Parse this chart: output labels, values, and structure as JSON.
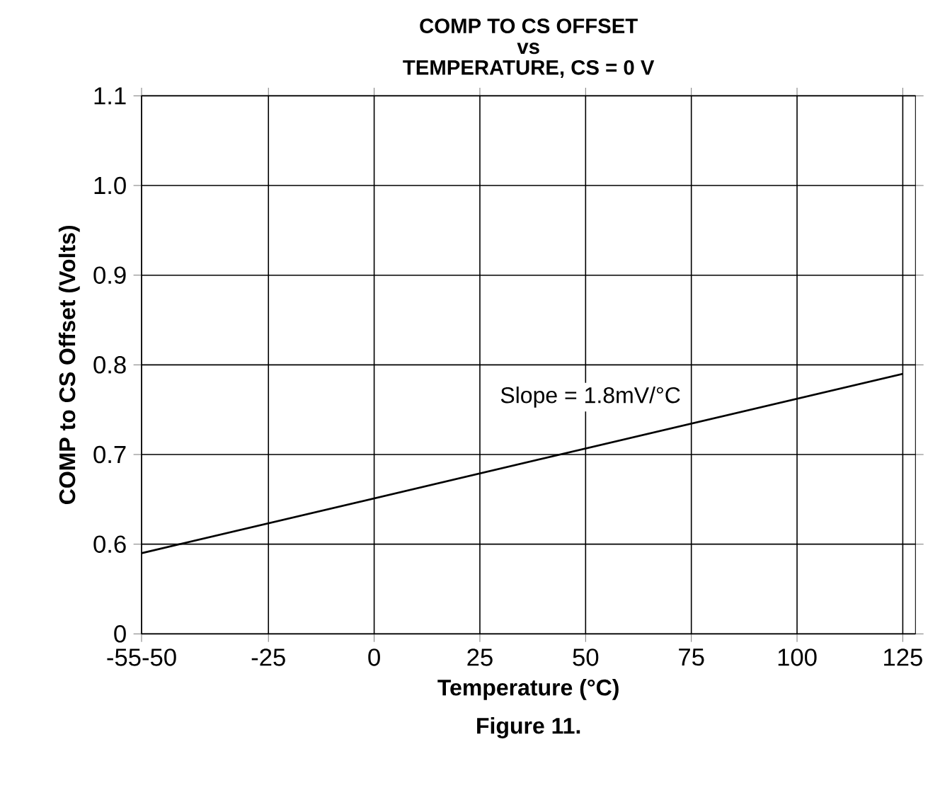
{
  "chart_data": {
    "type": "line",
    "title": "COMP TO CS OFFSET\nvs\nTEMPERATURE, CS = 0 V",
    "xlabel": "Temperature (°C)",
    "ylabel": "COMP to CS Offset (Volts)",
    "x": [
      -55,
      125
    ],
    "values": [
      0.59,
      0.79
    ],
    "color": "#000000",
    "xlim": [
      -55,
      128
    ],
    "ylim": [
      0.5,
      1.1
    ],
    "xticks": [
      {
        "value": -55,
        "label": "-55-50"
      },
      -25,
      0,
      25,
      50,
      75,
      100,
      125
    ],
    "yticks": [
      {
        "value": 0.5,
        "label": "0"
      },
      0.6,
      0.7,
      0.8,
      0.9,
      {
        "value": 1.0,
        "label": "1.0"
      },
      1.1
    ],
    "grid": true,
    "annotations": [
      "Slope = 1.8mV/°C",
      "Figure 11."
    ]
  }
}
